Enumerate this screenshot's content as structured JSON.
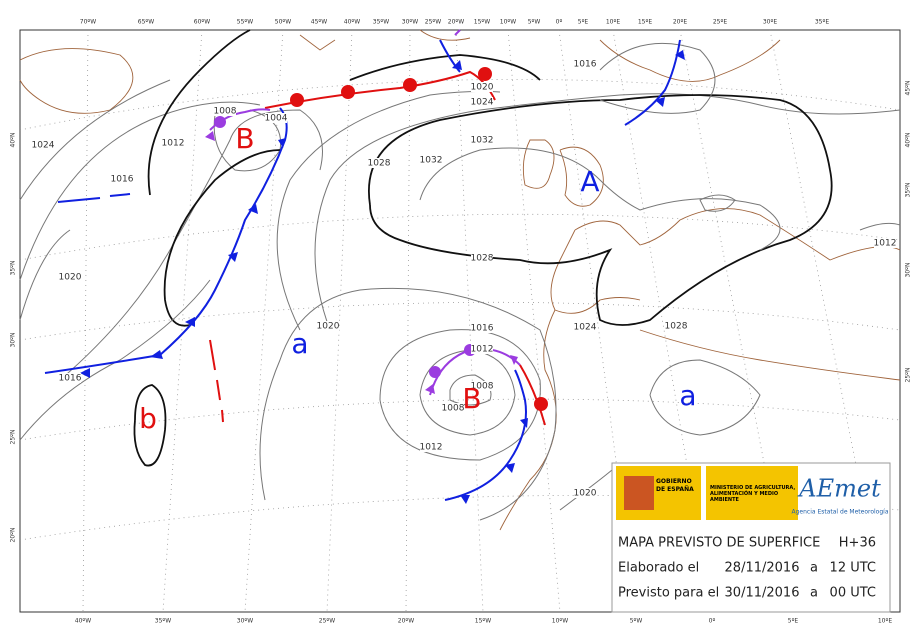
{
  "map": {
    "top_longitudes": [
      "70ºW",
      "65ºW",
      "60ºW",
      "55ºW",
      "50ºW",
      "45ºW",
      "40ºW",
      "35ºW",
      "30ºW",
      "25ºW",
      "20ºW",
      "15ºW",
      "10ºW",
      "5ºW",
      "0º",
      "5ºE",
      "10ºE",
      "15ºE",
      "20ºE",
      "25ºE",
      "30ºE",
      "35ºE"
    ],
    "bottom_longitudes": [
      "40ºW",
      "35ºW",
      "30ºW",
      "25ºW",
      "20ºW",
      "15ºW",
      "10ºW",
      "5ºW",
      "0º",
      "5ºE",
      "10ºE"
    ],
    "left_latitudes": [
      "40ºN",
      "35ºN",
      "30ºN",
      "25ºN",
      "20ºN"
    ],
    "right_latitudes": [
      "45ºN",
      "40ºN",
      "35ºN",
      "30ºN",
      "25ºN"
    ],
    "isobar_labels": [
      "1024",
      "1016",
      "1020",
      "1016",
      "1012",
      "1008",
      "1004",
      "1028",
      "1032",
      "1032",
      "1028",
      "1020",
      "1016",
      "1012",
      "1008",
      "1008",
      "1012",
      "1020",
      "1024",
      "1016",
      "1024",
      "1028",
      "1020",
      "1012"
    ],
    "pressure_centers": [
      "B",
      "A",
      "a",
      "b",
      "B",
      "a"
    ]
  },
  "info": {
    "gobierno": "GOBIERNO DE ESPAÑA",
    "ministerio": "MINISTERIO DE AGRICULTURA, ALIMENTACIÓN Y MEDIO AMBIENTE",
    "aemet": "AEmet",
    "aemet_full": "Agencia Estatal de Meteorología",
    "title": "MAPA PREVISTO DE SUPERFICE",
    "run": "H+36",
    "rows": [
      [
        "Elaborado el",
        "28/11/2016",
        "a",
        "12 UTC"
      ],
      [
        "Previsto para el",
        "30/11/2016",
        "a",
        "00 UTC"
      ]
    ]
  }
}
